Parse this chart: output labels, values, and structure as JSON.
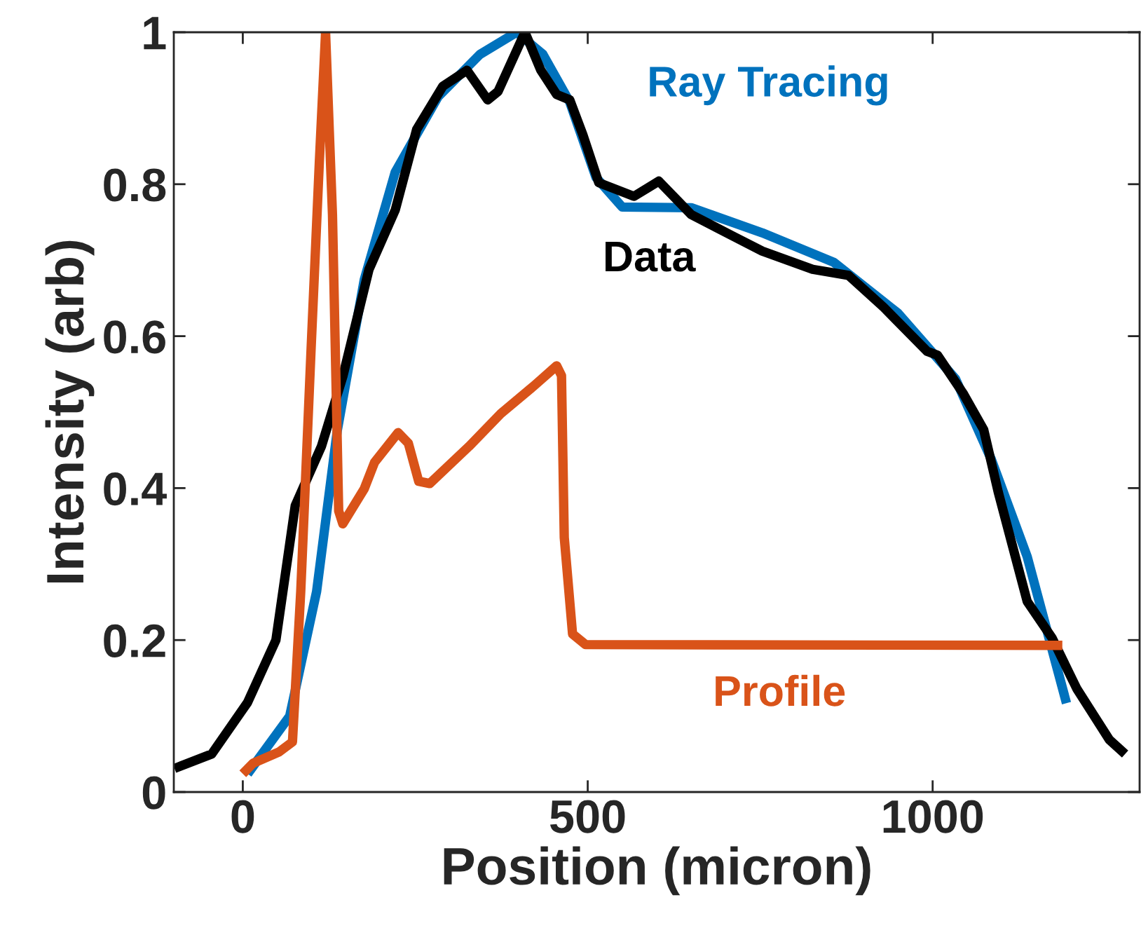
{
  "chart_data": {
    "type": "line",
    "xlabel": "Position (micron)",
    "ylabel": "Intensity (arb)",
    "xlim": [
      -100,
      1300
    ],
    "ylim": [
      0,
      1
    ],
    "xticks": [
      0,
      500,
      1000
    ],
    "yticks": [
      0,
      0.2,
      0.4,
      0.6,
      0.8,
      1
    ],
    "grid": false,
    "legend": false,
    "marker": "none",
    "line_style": "solid",
    "series": [
      {
        "name": "Ray Tracing",
        "color": "#0072bd",
        "x": [
          7,
          68,
          107,
          137,
          176,
          221,
          283,
          344,
          397,
          435,
          474,
          512,
          550,
          650,
          753,
          857,
          950,
          1033,
          1085,
          1137,
          1194
        ],
        "values": [
          0.024,
          0.1,
          0.264,
          0.476,
          0.674,
          0.816,
          0.915,
          0.971,
          1.0,
          0.971,
          0.908,
          0.809,
          0.77,
          0.769,
          0.736,
          0.697,
          0.63,
          0.544,
          0.438,
          0.31,
          0.117
        ]
      },
      {
        "name": "Data",
        "color": "#000000",
        "x": [
          -99,
          -45,
          7,
          48,
          76,
          114,
          145,
          183,
          221,
          252,
          290,
          325,
          355,
          370,
          409,
          432,
          455,
          474,
          493,
          516,
          567,
          603,
          650,
          712,
          753,
          826,
          878,
          929,
          992,
          1007,
          1044,
          1074,
          1095,
          1137,
          1173,
          1209,
          1256,
          1279
        ],
        "values": [
          0.031,
          0.05,
          0.118,
          0.2,
          0.377,
          0.455,
          0.547,
          0.688,
          0.766,
          0.872,
          0.929,
          0.95,
          0.911,
          0.922,
          1.0,
          0.95,
          0.918,
          0.911,
          0.865,
          0.802,
          0.784,
          0.804,
          0.76,
          0.731,
          0.712,
          0.688,
          0.68,
          0.638,
          0.58,
          0.575,
          0.525,
          0.477,
          0.395,
          0.251,
          0.203,
          0.136,
          0.069,
          0.05
        ]
      },
      {
        "name": "Profile",
        "color": "#d95319",
        "x": [
          0,
          15,
          53,
          72,
          84,
          99,
          111,
          120,
          130,
          139,
          145,
          176,
          191,
          225,
          240,
          255,
          271,
          328,
          374,
          420,
          455,
          462,
          466,
          478,
          497,
          1188
        ],
        "values": [
          0.024,
          0.038,
          0.053,
          0.066,
          0.264,
          0.583,
          0.83,
          1.0,
          0.76,
          0.37,
          0.353,
          0.399,
          0.434,
          0.473,
          0.459,
          0.409,
          0.406,
          0.455,
          0.498,
          0.533,
          0.561,
          0.548,
          0.335,
          0.208,
          0.194,
          0.193
        ]
      }
    ]
  }
}
